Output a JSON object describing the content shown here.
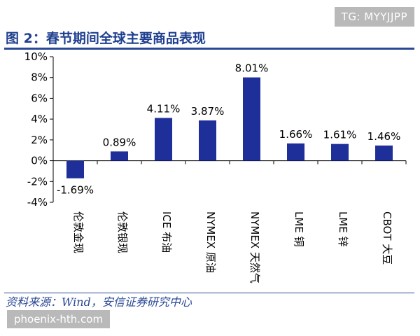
{
  "header": {
    "title": "图 2：春节期间全球主要商品表现"
  },
  "watermarks": {
    "top": "TG: MYYJJPP",
    "bottom": "phoenix-hth.com"
  },
  "footer": {
    "source": "资料来源：Wind，安信证券研究中心"
  },
  "colors": {
    "bar": "#1f2f9a",
    "title": "#1f3f8f",
    "rule": "#2a4896"
  },
  "chart_data": {
    "type": "bar",
    "title": "",
    "xlabel": "",
    "ylabel": "",
    "categories": [
      "伦敦金现",
      "伦敦银现",
      "ICE 布油",
      "NYMEX 原油",
      "NYMEX 天然气",
      "LME 铜",
      "LME 锌",
      "CBOT 大豆"
    ],
    "values": [
      -1.69,
      0.89,
      4.11,
      3.87,
      8.01,
      1.66,
      1.61,
      1.46
    ],
    "data_labels": [
      "-1.69%",
      "0.89%",
      "4.11%",
      "3.87%",
      "8.01%",
      "1.66%",
      "1.61%",
      "1.46%"
    ],
    "ylim": [
      -4,
      10
    ],
    "yticks": [
      -4,
      -2,
      0,
      2,
      4,
      6,
      8,
      10
    ],
    "ytick_labels": [
      "-4%",
      "-2%",
      "0%",
      "2%",
      "4%",
      "6%",
      "8%",
      "10%"
    ],
    "grid": false,
    "legend": "none"
  }
}
